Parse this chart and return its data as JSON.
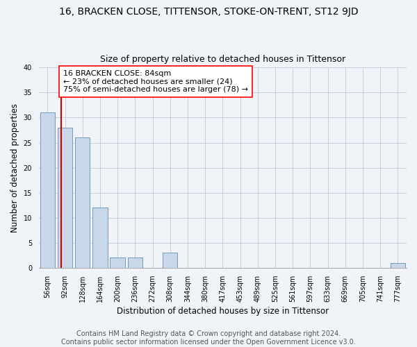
{
  "title": "16, BRACKEN CLOSE, TITTENSOR, STOKE-ON-TRENT, ST12 9JD",
  "subtitle": "Size of property relative to detached houses in Tittensor",
  "xlabel": "Distribution of detached houses by size in Tittensor",
  "ylabel": "Number of detached properties",
  "categories": [
    "56sqm",
    "92sqm",
    "128sqm",
    "164sqm",
    "200sqm",
    "236sqm",
    "272sqm",
    "308sqm",
    "344sqm",
    "380sqm",
    "417sqm",
    "453sqm",
    "489sqm",
    "525sqm",
    "561sqm",
    "597sqm",
    "633sqm",
    "669sqm",
    "705sqm",
    "741sqm",
    "777sqm"
  ],
  "values": [
    31,
    28,
    26,
    12,
    2,
    2,
    0,
    3,
    0,
    0,
    0,
    0,
    0,
    0,
    0,
    0,
    0,
    0,
    0,
    0,
    1
  ],
  "bar_color": "#c8d8e8",
  "bar_edge_color": "#5f8fb0",
  "subject_line_color": "#cc0000",
  "annotation_text": "16 BRACKEN CLOSE: 84sqm\n← 23% of detached houses are smaller (24)\n75% of semi-detached houses are larger (78) →",
  "ylim": [
    0,
    40
  ],
  "yticks": [
    0,
    5,
    10,
    15,
    20,
    25,
    30,
    35,
    40
  ],
  "footer_line1": "Contains HM Land Registry data © Crown copyright and database right 2024.",
  "footer_line2": "Contains public sector information licensed under the Open Government Licence v3.0.",
  "bg_color": "#f0f4f8",
  "plot_bg_color": "#f0f4f8",
  "grid_color": "#c0d0e0",
  "title_fontsize": 10,
  "subtitle_fontsize": 9,
  "axis_label_fontsize": 8.5,
  "tick_fontsize": 7,
  "footer_fontsize": 7,
  "annotation_fontsize": 8
}
